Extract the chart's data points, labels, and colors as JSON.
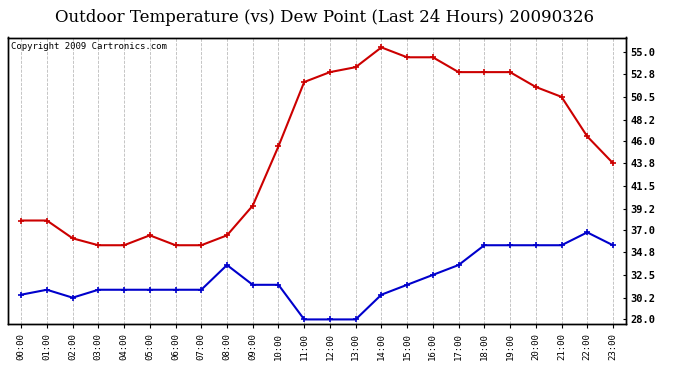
{
  "title": "Outdoor Temperature (vs) Dew Point (Last 24 Hours) 20090326",
  "copyright": "Copyright 2009 Cartronics.com",
  "hours": [
    "00:00",
    "01:00",
    "02:00",
    "03:00",
    "04:00",
    "05:00",
    "06:00",
    "07:00",
    "08:00",
    "09:00",
    "10:00",
    "11:00",
    "12:00",
    "13:00",
    "14:00",
    "15:00",
    "16:00",
    "17:00",
    "18:00",
    "19:00",
    "20:00",
    "21:00",
    "22:00",
    "23:00"
  ],
  "temp": [
    38.0,
    38.0,
    36.2,
    35.5,
    35.5,
    36.5,
    35.5,
    35.5,
    36.5,
    39.5,
    45.5,
    52.0,
    53.0,
    53.5,
    55.5,
    54.5,
    54.5,
    53.0,
    53.0,
    53.0,
    51.5,
    50.5,
    46.5,
    43.8
  ],
  "dew": [
    30.5,
    31.0,
    30.2,
    31.0,
    31.0,
    31.0,
    31.0,
    31.0,
    33.5,
    31.5,
    31.5,
    28.0,
    28.0,
    28.0,
    30.5,
    31.5,
    32.5,
    33.5,
    35.5,
    35.5,
    35.5,
    35.5,
    36.8,
    35.5
  ],
  "temp_color": "#cc0000",
  "dew_color": "#0000cc",
  "bg_color": "#ffffff",
  "grid_color": "#aaaaaa",
  "ylim": [
    27.5,
    56.5
  ],
  "yticks": [
    28.0,
    30.2,
    32.5,
    34.8,
    37.0,
    39.2,
    41.5,
    43.8,
    46.0,
    48.2,
    50.5,
    52.8,
    55.0
  ],
  "title_fontsize": 12,
  "copyright_fontsize": 6.5
}
